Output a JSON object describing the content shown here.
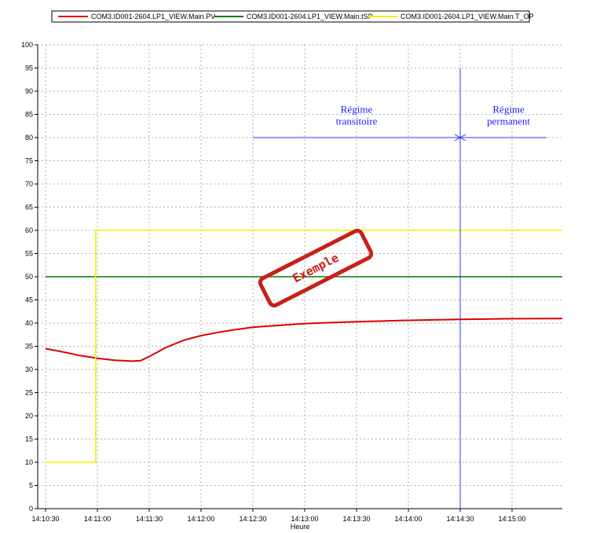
{
  "chart_data": {
    "type": "line",
    "xlabel": "Heure",
    "ylabel": "",
    "title": "",
    "xlim": [
      "14:10:30",
      "14:15:30"
    ],
    "ylim": [
      0,
      100
    ],
    "grid": true,
    "legend_position": "top",
    "x_ticks": [
      "14:10:30",
      "14:11:00",
      "14:11:30",
      "14:12:00",
      "14:12:30",
      "14:13:00",
      "14:13:30",
      "14:14:00",
      "14:14:30",
      "14:15:00"
    ],
    "y_ticks": [
      0,
      5,
      10,
      15,
      20,
      25,
      30,
      35,
      40,
      45,
      50,
      55,
      60,
      65,
      70,
      75,
      80,
      85,
      90,
      95,
      100
    ],
    "series": [
      {
        "name": "COM3.ID001-2604.LP1_VIEW.Main.PV",
        "color": "#e00000",
        "x": [
          "14:10:30",
          "14:10:40",
          "14:10:50",
          "14:11:00",
          "14:11:10",
          "14:11:20",
          "14:11:25",
          "14:11:30",
          "14:11:40",
          "14:11:50",
          "14:12:00",
          "14:12:10",
          "14:12:20",
          "14:12:30",
          "14:12:45",
          "14:13:00",
          "14:13:15",
          "14:13:30",
          "14:14:00",
          "14:14:30",
          "14:15:00",
          "14:15:30"
        ],
        "values": [
          34.5,
          33.8,
          33.0,
          32.4,
          32.0,
          31.8,
          31.9,
          32.8,
          34.8,
          36.3,
          37.3,
          38.0,
          38.6,
          39.1,
          39.5,
          39.9,
          40.1,
          40.3,
          40.6,
          40.8,
          40.95,
          41.0
        ]
      },
      {
        "name": "COM3.ID001-2604.LP1_VIEW.Main.tSP",
        "color": "#007a00",
        "x": [
          "14:10:30",
          "14:15:30"
        ],
        "values": [
          50,
          50
        ]
      },
      {
        "name": "COM3.ID001-2604.LP1_VIEW.Main.T_OP",
        "color": "#f2f200",
        "x": [
          "14:10:30",
          "14:10:59",
          "14:10:59",
          "14:15:30"
        ],
        "values": [
          10,
          10,
          60,
          60
        ]
      }
    ],
    "annotations": [
      {
        "text_lines": [
          "Régime",
          "transitoire"
        ],
        "x": "14:13:30",
        "y": 83.5
      },
      {
        "text_lines": [
          "Régime",
          "permanent"
        ],
        "x": "14:14:58",
        "y": 83.5
      },
      {
        "type": "vertical_line",
        "x": "14:14:30",
        "y_from": 0,
        "y_to": 95,
        "color": "#3333ff"
      },
      {
        "type": "horizontal_arrow",
        "x_from": "14:12:30",
        "x_to": "14:15:20",
        "y": 80,
        "split_at": "14:14:30",
        "color": "#3333ff"
      }
    ],
    "stamp": {
      "text": "Exemple",
      "color": "#c8201a"
    }
  }
}
